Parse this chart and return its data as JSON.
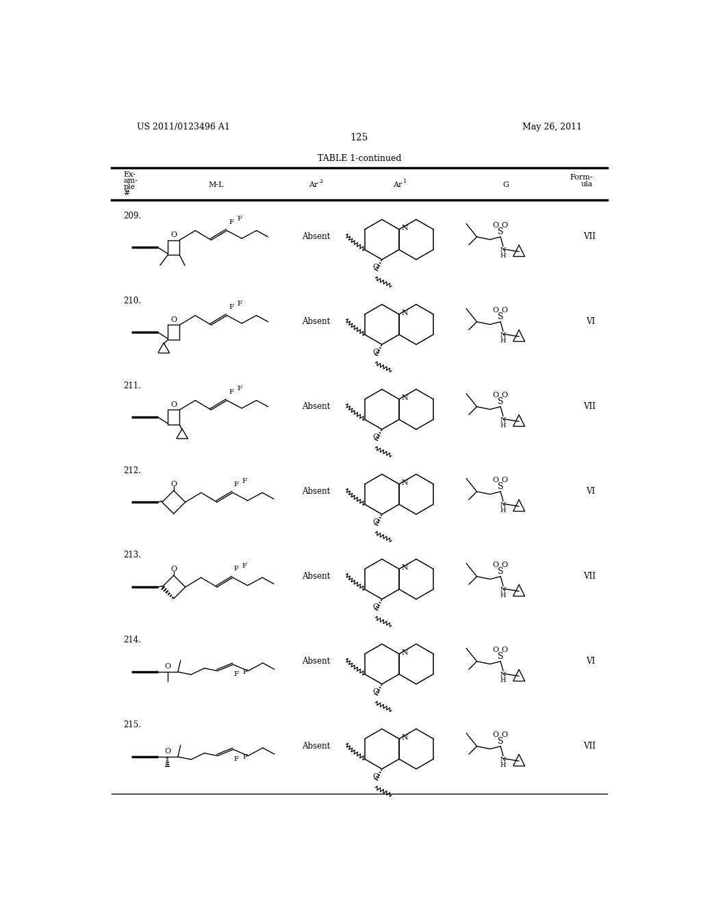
{
  "page_header_left": "US 2011/0123496 A1",
  "page_header_right": "May 26, 2011",
  "page_number": "125",
  "table_title": "TABLE 1-continued",
  "background_color": "#ffffff",
  "text_color": "#000000",
  "row_nums": [
    "209.",
    "210.",
    "211.",
    "212.",
    "213.",
    "214.",
    "215."
  ],
  "formulas": [
    "VII",
    "VI",
    "VII",
    "VI",
    "VII",
    "VI",
    "VII"
  ]
}
